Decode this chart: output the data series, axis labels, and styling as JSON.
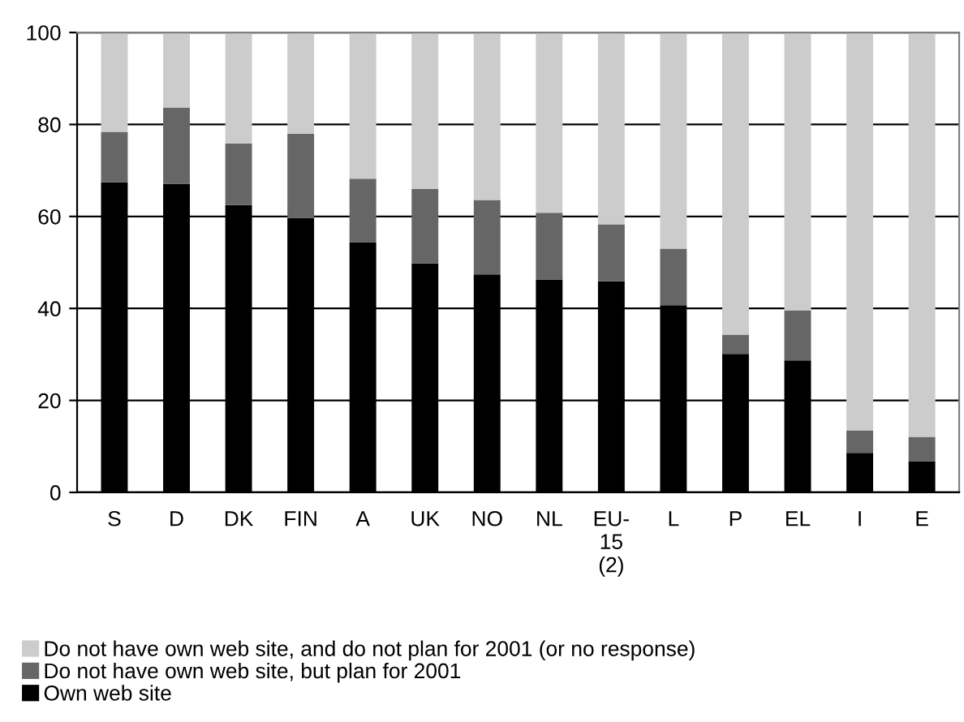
{
  "chart_data": {
    "type": "bar",
    "stacked": true,
    "categories": [
      "S",
      "D",
      "DK",
      "FIN",
      "A",
      "UK",
      "NO",
      "NL",
      "EU-\n15\n(2)",
      "L",
      "P",
      "EL",
      "I",
      "E"
    ],
    "series": [
      {
        "name": "Own web site",
        "color": "#000000",
        "values": [
          67.4,
          67.1,
          62.5,
          59.7,
          54.4,
          49.8,
          47.4,
          46.3,
          45.9,
          40.7,
          30.1,
          28.7,
          8.6,
          6.8
        ]
      },
      {
        "name": "Do not have own web site, but plan for 2001",
        "color": "#666666",
        "values": [
          11.0,
          16.6,
          13.4,
          18.3,
          13.8,
          16.2,
          16.2,
          14.5,
          12.4,
          12.3,
          4.2,
          10.9,
          4.9,
          5.3
        ]
      },
      {
        "name": "Do not have own web site, and do not plan for 2001 (or no response)",
        "color": "#cccccc",
        "values": [
          21.6,
          16.3,
          24.1,
          22.0,
          31.8,
          34.0,
          36.4,
          39.2,
          41.7,
          47.0,
          65.7,
          60.4,
          86.5,
          87.9
        ]
      }
    ],
    "ylim": [
      0,
      100
    ],
    "yticks": [
      0,
      20,
      40,
      60,
      80,
      100
    ],
    "grid": "y",
    "legend": "bottom"
  }
}
